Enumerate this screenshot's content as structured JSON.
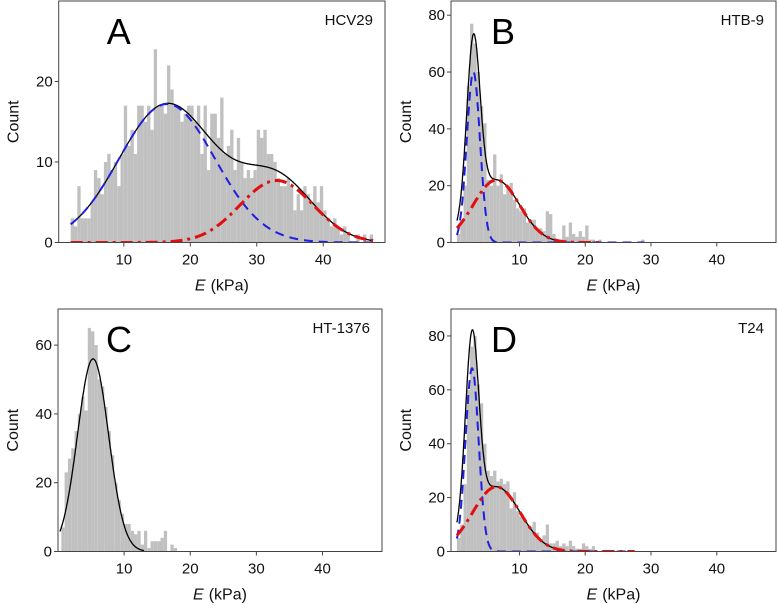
{
  "chart_data": [
    {
      "type": "bar",
      "panel_label": "A",
      "cell_line": "HCV29",
      "xlabel_italic": "E",
      "xlabel_unit": "(kPa)",
      "ylabel": "Count",
      "xlim": [
        0.2,
        49.3
      ],
      "ylim": [
        0,
        30
      ],
      "xticks": [
        10,
        20,
        30,
        40
      ],
      "yticks": [
        0,
        10,
        20
      ],
      "bin_start": 2.0,
      "bin_width": 0.5,
      "counts": [
        3,
        2,
        7,
        3,
        3,
        3,
        5,
        9,
        8,
        6,
        10,
        11,
        9,
        10,
        7,
        11,
        17,
        12,
        14,
        11,
        17,
        17,
        15,
        17,
        14,
        24,
        17,
        17,
        16,
        22,
        19,
        17,
        17,
        15,
        16,
        17,
        17,
        15,
        17,
        11,
        17,
        9,
        16,
        16,
        13,
        18,
        11,
        12,
        14,
        9,
        13,
        10,
        8,
        9,
        8,
        9,
        14,
        13,
        14,
        11,
        11,
        10,
        8,
        7,
        7,
        8,
        7,
        4,
        6,
        4,
        7,
        6,
        5,
        7,
        5,
        7,
        4,
        3,
        2,
        3,
        2,
        1,
        2,
        1,
        0,
        0,
        1,
        0,
        1,
        0,
        1
      ],
      "fits": [
        {
          "component": "blue-dashed",
          "color": "#1f1fe0",
          "mean": 16.5,
          "peak": 17.2,
          "sigma": 7.2,
          "range": [
            2,
            47.5
          ]
        },
        {
          "component": "red-dashdot",
          "color": "#e01010",
          "mean": 33,
          "peak": 7.7,
          "sigma": 5.5,
          "range": [
            2,
            47.5
          ]
        }
      ],
      "sum_fit": {
        "color": "#000000",
        "range": [
          2,
          47.5
        ]
      },
      "bar_color": "#c0c0c0",
      "grid": false
    },
    {
      "type": "bar",
      "panel_label": "B",
      "cell_line": "HTB-9",
      "xlabel_italic": "E",
      "xlabel_unit": "(kPa)",
      "ylabel": "Count",
      "xlim": [
        -0.4,
        49
      ],
      "ylim": [
        0,
        85
      ],
      "xticks": [
        10,
        20,
        30,
        40
      ],
      "yticks": [
        0,
        20,
        40,
        60,
        80
      ],
      "bin_start": 0.5,
      "bin_width": 0.5,
      "counts": [
        3,
        8,
        20,
        55,
        77,
        70,
        60,
        48,
        42,
        22,
        20,
        31,
        20,
        24,
        17,
        20,
        21,
        15,
        12,
        11,
        12,
        7,
        8,
        8,
        5,
        5,
        4,
        11,
        10,
        3,
        1,
        1,
        6,
        2,
        7,
        3,
        2,
        4,
        2,
        6,
        1,
        1,
        0,
        1,
        0,
        0,
        0,
        0,
        0,
        0,
        0,
        0,
        0,
        0,
        0,
        0,
        1
      ],
      "fits": [
        {
          "component": "blue-dashed",
          "color": "#1f1fe0",
          "mean": 3.0,
          "peak": 60,
          "sigma": 1.0,
          "range": [
            0.5,
            29
          ]
        },
        {
          "component": "red-dashdot",
          "color": "#e01010",
          "mean": 6.5,
          "peak": 22,
          "sigma": 3.5,
          "range": [
            0.5,
            22.5
          ]
        }
      ],
      "sum_fit": {
        "color": "#000000",
        "range": [
          0.5,
          16
        ]
      },
      "bar_color": "#c0c0c0",
      "grid": false
    },
    {
      "type": "bar",
      "panel_label": "C",
      "cell_line": "HT-1376",
      "xlabel_italic": "E",
      "xlabel_unit": "(kPa)",
      "ylabel": "Count",
      "xlim": [
        0,
        49
      ],
      "ylim": [
        0,
        70.5
      ],
      "xticks": [
        10,
        20,
        30,
        40
      ],
      "yticks": [
        0,
        20,
        40,
        60
      ],
      "bin_start": 0.5,
      "bin_width": 0.5,
      "counts": [
        7,
        23,
        27,
        30,
        35,
        40,
        45,
        41,
        65,
        64,
        60,
        50,
        48,
        42,
        35,
        28,
        20,
        15,
        11,
        8,
        8,
        6,
        5,
        6,
        2,
        6,
        1,
        3,
        3,
        3,
        4,
        6,
        0,
        2,
        1
      ],
      "fits": [
        {
          "component": "black-solid",
          "color": "#000000",
          "mean": 5.3,
          "peak": 56,
          "sigma": 2.35,
          "range": [
            0.3,
            13
          ]
        }
      ],
      "bar_color": "#c0c0c0",
      "grid": false
    },
    {
      "type": "bar",
      "panel_label": "D",
      "cell_line": "T24",
      "xlabel_italic": "E",
      "xlabel_unit": "(kPa)",
      "ylabel": "Count",
      "xlim": [
        -0.4,
        49
      ],
      "ylim": [
        0,
        90
      ],
      "xticks": [
        10,
        20,
        30,
        40
      ],
      "yticks": [
        0,
        20,
        40,
        60,
        80
      ],
      "bin_start": 0.5,
      "bin_width": 0.5,
      "counts": [
        5,
        10,
        25,
        60,
        76,
        80,
        62,
        55,
        40,
        30,
        28,
        30,
        26,
        27,
        25,
        26,
        16,
        22,
        15,
        13,
        12,
        10,
        9,
        11,
        7,
        4,
        6,
        10,
        3,
        3,
        4,
        2,
        3,
        2,
        4,
        2,
        1,
        1,
        3,
        2,
        1,
        2
      ],
      "fits": [
        {
          "component": "blue-dashed",
          "color": "#1f1fe0",
          "mean": 2.8,
          "peak": 68,
          "sigma": 1.0,
          "range": [
            0.5,
            27.5
          ]
        },
        {
          "component": "red-dashdot",
          "color": "#e01010",
          "mean": 6.5,
          "peak": 24,
          "sigma": 3.6,
          "range": [
            0.5,
            27.5
          ]
        }
      ],
      "sum_fit": {
        "color": "#000000",
        "range": [
          0.5,
          15.5
        ]
      },
      "bar_color": "#c0c0c0",
      "grid": false
    }
  ]
}
